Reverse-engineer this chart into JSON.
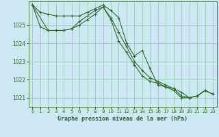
{
  "title": "Graphe pression niveau de la mer (hPa)",
  "background_color": "#cce8f0",
  "grid_color": "#99ccbb",
  "line_color": "#2d6a2d",
  "xlim": [
    -0.5,
    23.5
  ],
  "ylim": [
    1020.5,
    1026.3
  ],
  "yticks": [
    1021,
    1022,
    1023,
    1024,
    1025
  ],
  "xticks": [
    0,
    1,
    2,
    3,
    4,
    5,
    6,
    7,
    8,
    9,
    10,
    11,
    12,
    13,
    14,
    15,
    16,
    17,
    18,
    19,
    20,
    21,
    22,
    23
  ],
  "series1": {
    "x": [
      0,
      1,
      2,
      3,
      4,
      5,
      6,
      7,
      8,
      9,
      10,
      11,
      12,
      13,
      14,
      15,
      16,
      17,
      18,
      19,
      20,
      21,
      22,
      23
    ],
    "y": [
      1026.1,
      1025.7,
      1025.6,
      1025.5,
      1025.5,
      1025.5,
      1025.5,
      1025.7,
      1025.9,
      1026.1,
      1025.8,
      1025.4,
      1024.0,
      1023.3,
      1023.6,
      1022.6,
      1021.7,
      1021.6,
      1021.4,
      1021.0,
      1021.0,
      1021.1,
      1021.4,
      1021.2
    ]
  },
  "series2": {
    "x": [
      0,
      1,
      2,
      3,
      4,
      5,
      6,
      7,
      8,
      9,
      10,
      11,
      12,
      13,
      14,
      15,
      16,
      17,
      18,
      19,
      20,
      21,
      22,
      23
    ],
    "y": [
      1026.1,
      1024.9,
      1024.7,
      1024.7,
      1024.7,
      1024.8,
      1025.2,
      1025.5,
      1025.8,
      1026.0,
      1025.4,
      1024.6,
      1023.8,
      1023.0,
      1022.5,
      1022.1,
      1021.9,
      1021.7,
      1021.5,
      1021.1,
      1021.0,
      1021.1,
      1021.4,
      1021.2
    ]
  },
  "series3": {
    "x": [
      0,
      2,
      3,
      4,
      5,
      6,
      7,
      8,
      9,
      10,
      11,
      12,
      13,
      14,
      15,
      16,
      17,
      18,
      19,
      20,
      21,
      22,
      23
    ],
    "y": [
      1026.1,
      1024.7,
      1024.7,
      1024.7,
      1024.8,
      1025.0,
      1025.3,
      1025.6,
      1026.0,
      1025.3,
      1024.1,
      1023.5,
      1022.8,
      1022.2,
      1021.9,
      1021.8,
      1021.6,
      1021.5,
      1021.3,
      1021.0,
      1021.1,
      1021.4,
      1021.2
    ]
  }
}
